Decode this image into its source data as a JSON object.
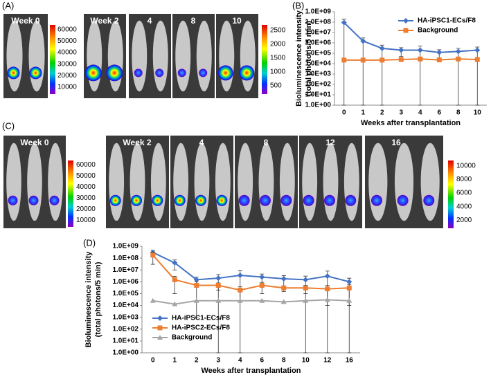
{
  "panels": {
    "A": {
      "label": "(A)",
      "weeks": [
        "Week 0",
        "Week 2",
        "4",
        "8",
        "10"
      ],
      "colorbar_left": [
        60000,
        50000,
        40000,
        30000,
        20000,
        10000
      ],
      "colorbar_right": [
        2500,
        2000,
        1500,
        1000,
        500
      ]
    },
    "B": {
      "label": "(B)"
    },
    "C": {
      "label": "(C)",
      "weeks": [
        "Week 0",
        "Week 2",
        "4",
        "8",
        "12",
        "16"
      ],
      "colorbar_left": [
        60000,
        50000,
        40000,
        30000,
        20000,
        10000
      ],
      "colorbar_right": [
        10000,
        8000,
        6000,
        4000,
        2000
      ]
    },
    "D": {
      "label": "(D)"
    }
  },
  "chart_data": [
    {
      "type": "line",
      "log_y": true,
      "legend": "top-right",
      "categories": [
        "0",
        "1",
        "2",
        "3",
        "4",
        "6",
        "8",
        "10"
      ],
      "xlabel": "Weeks after transplantation",
      "ylabel": [
        "Bioluminescence intensity",
        "(total photons/5 min)"
      ],
      "ylim": [
        1,
        1000000000
      ],
      "yticks": [
        {
          "value": 1,
          "label": "1.0E+00"
        },
        {
          "value": 10,
          "label": "1.0E+01"
        },
        {
          "value": 100,
          "label": "1.0E+02"
        },
        {
          "value": 1000,
          "label": "1.0E+03"
        },
        {
          "value": 10000,
          "label": "1.0E+04"
        },
        {
          "value": 100000,
          "label": "1.0E+05"
        },
        {
          "value": 1000000,
          "label": "1.0E+06"
        },
        {
          "value": 10000000,
          "label": "1.0E+07"
        },
        {
          "value": 100000000,
          "label": "1.0E+08"
        },
        {
          "value": 1000000000,
          "label": "1.0E+09"
        }
      ],
      "series": [
        {
          "name": "HA-iPSC1-ECs/F8",
          "color": "#4472c4",
          "marker": "diamond",
          "values": [
            90000000,
            1500000,
            300000,
            200000,
            200000,
            120000,
            150000,
            200000
          ],
          "errors": [
            100000000,
            1500000,
            300000,
            150000,
            300000,
            100000,
            150000,
            200000
          ]
        },
        {
          "name": "Background",
          "color": "#ed7d31",
          "marker": "square",
          "values": [
            22000,
            22000,
            22000,
            25000,
            28000,
            23000,
            28000,
            25000
          ]
        }
      ]
    },
    {
      "type": "line",
      "log_y": true,
      "legend": "bottom-left",
      "categories": [
        "0",
        "1",
        "2",
        "3",
        "4",
        "6",
        "8",
        "10",
        "12",
        "16"
      ],
      "xlabel": "Weeks after transplantation",
      "ylabel": [
        "Bioluminescence intensity",
        "(total photons/5 min)"
      ],
      "ylim": [
        1,
        1000000000
      ],
      "yticks": [
        {
          "value": 1,
          "label": "1.0E+00"
        },
        {
          "value": 10,
          "label": "1.0E+01"
        },
        {
          "value": 100,
          "label": "1.0E+02"
        },
        {
          "value": 1000,
          "label": "1.0E+03"
        },
        {
          "value": 10000,
          "label": "1.0E+04"
        },
        {
          "value": 100000,
          "label": "1.0E+05"
        },
        {
          "value": 1000000,
          "label": "1.0E+06"
        },
        {
          "value": 10000000,
          "label": "1.0E+07"
        },
        {
          "value": 100000000,
          "label": "1.0E+08"
        },
        {
          "value": 1000000000,
          "label": "1.0E+09"
        }
      ],
      "series": [
        {
          "name": "HA-iPSC1-ECs/F8",
          "color": "#4472c4",
          "marker": "diamond",
          "values": [
            300000000,
            40000000,
            1500000,
            2000000,
            3500000,
            2500000,
            1800000,
            1500000,
            3000000,
            1000000
          ],
          "errors": [
            150000000,
            30000000,
            1000000,
            2000000,
            5000000,
            2000000,
            1500000,
            1500000,
            5000000,
            1000000
          ]
        },
        {
          "name": "HA-iPSC2-ECs/F8",
          "color": "#ed7d31",
          "marker": "square",
          "values": [
            180000000,
            1500000,
            500000,
            500000,
            200000,
            500000,
            300000,
            300000,
            250000,
            300000
          ],
          "errors": [
            150000000,
            1400000,
            499000,
            300000,
            180000,
            400000,
            150000,
            200000,
            240000,
            290000
          ]
        },
        {
          "name": "Background",
          "color": "#a5a5a5",
          "marker": "triangle",
          "values": [
            25000,
            13000,
            25000,
            25000,
            25000,
            25000,
            20000,
            25000,
            30000,
            25000
          ]
        }
      ]
    }
  ]
}
